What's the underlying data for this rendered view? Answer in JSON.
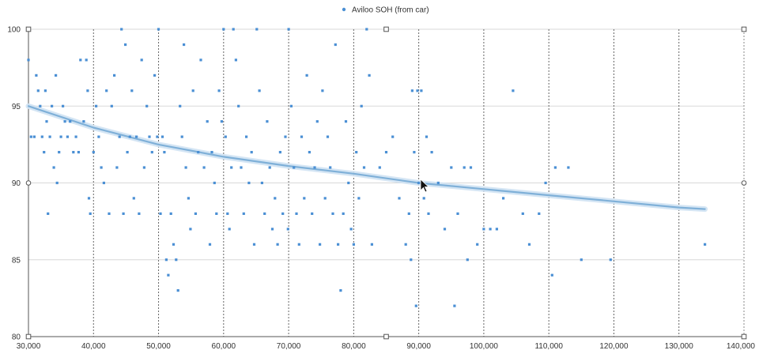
{
  "chart_data": {
    "type": "scatter",
    "title": "",
    "xlabel": "",
    "ylabel": "",
    "xlim": [
      30000,
      140000
    ],
    "ylim": [
      80,
      100
    ],
    "x_ticks": [
      30000,
      40000,
      50000,
      60000,
      70000,
      80000,
      90000,
      100000,
      110000,
      120000,
      130000,
      140000
    ],
    "x_tick_labels": [
      "30,000",
      "40,000",
      "50,000",
      "60,000",
      "70,000",
      "80,000",
      "90,000",
      "100,000",
      "110,000",
      "120,000",
      "130,000",
      "140,000"
    ],
    "y_ticks": [
      80,
      85,
      90,
      95,
      100
    ],
    "y_tick_labels": [
      "80",
      "85",
      "90",
      "95",
      "100"
    ],
    "grid": {
      "vertical": "dotted",
      "horizontal": "solid-light"
    },
    "legend": {
      "position": "top-center",
      "entries": [
        "Aviloo SOH (from car)"
      ]
    },
    "colors": {
      "points": "#4a8fd4",
      "trend": "#7fb0d8",
      "grid_v": "#666666",
      "grid_h": "#d8d8d8",
      "axis": "#555555"
    },
    "series": [
      {
        "name": "Aviloo SOH (from car)",
        "points": [
          [
            30000,
            98
          ],
          [
            30400,
            93
          ],
          [
            30900,
            93
          ],
          [
            31200,
            97
          ],
          [
            31500,
            96
          ],
          [
            31800,
            95
          ],
          [
            32100,
            93
          ],
          [
            32400,
            92
          ],
          [
            32600,
            96
          ],
          [
            32800,
            94
          ],
          [
            33000,
            88
          ],
          [
            33300,
            93
          ],
          [
            33600,
            95
          ],
          [
            33900,
            91
          ],
          [
            34200,
            97
          ],
          [
            34400,
            90
          ],
          [
            34700,
            92
          ],
          [
            35000,
            93
          ],
          [
            35300,
            95
          ],
          [
            35600,
            94
          ],
          [
            36000,
            93
          ],
          [
            36400,
            94
          ],
          [
            36900,
            92
          ],
          [
            37300,
            93
          ],
          [
            37700,
            92
          ],
          [
            38000,
            98
          ],
          [
            38500,
            94
          ],
          [
            38900,
            98
          ],
          [
            39100,
            96
          ],
          [
            39300,
            89
          ],
          [
            39500,
            88
          ],
          [
            40000,
            92
          ],
          [
            40400,
            95
          ],
          [
            40800,
            93
          ],
          [
            41200,
            91
          ],
          [
            41600,
            90
          ],
          [
            42000,
            96
          ],
          [
            42400,
            88
          ],
          [
            42800,
            95
          ],
          [
            43200,
            97
          ],
          [
            43600,
            91
          ],
          [
            44000,
            93
          ],
          [
            44300,
            100
          ],
          [
            44600,
            88
          ],
          [
            44900,
            99
          ],
          [
            45200,
            92
          ],
          [
            45600,
            93
          ],
          [
            45900,
            96
          ],
          [
            46200,
            89
          ],
          [
            46600,
            93
          ],
          [
            47000,
            88
          ],
          [
            47400,
            98
          ],
          [
            47800,
            91
          ],
          [
            48200,
            95
          ],
          [
            48600,
            93
          ],
          [
            49000,
            92
          ],
          [
            49400,
            97
          ],
          [
            49800,
            93
          ],
          [
            50000,
            100
          ],
          [
            50300,
            88
          ],
          [
            50600,
            93
          ],
          [
            50900,
            92
          ],
          [
            51200,
            85
          ],
          [
            51500,
            84
          ],
          [
            51900,
            88
          ],
          [
            52300,
            86
          ],
          [
            52700,
            85
          ],
          [
            53000,
            83
          ],
          [
            53300,
            95
          ],
          [
            53600,
            93
          ],
          [
            53900,
            99
          ],
          [
            54200,
            91
          ],
          [
            54600,
            89
          ],
          [
            54900,
            87
          ],
          [
            55300,
            96
          ],
          [
            55700,
            88
          ],
          [
            56100,
            92
          ],
          [
            56500,
            98
          ],
          [
            57000,
            91
          ],
          [
            57500,
            94
          ],
          [
            57900,
            86
          ],
          [
            58200,
            92
          ],
          [
            58600,
            90
          ],
          [
            58900,
            88
          ],
          [
            59300,
            96
          ],
          [
            59700,
            94
          ],
          [
            60000,
            100
          ],
          [
            60300,
            93
          ],
          [
            60600,
            88
          ],
          [
            60900,
            87
          ],
          [
            61200,
            91
          ],
          [
            61500,
            100
          ],
          [
            61900,
            98
          ],
          [
            62300,
            95
          ],
          [
            62700,
            91
          ],
          [
            63100,
            88
          ],
          [
            63500,
            93
          ],
          [
            63900,
            90
          ],
          [
            64300,
            92
          ],
          [
            64700,
            86
          ],
          [
            65100,
            100
          ],
          [
            65500,
            96
          ],
          [
            65900,
            90
          ],
          [
            66300,
            88
          ],
          [
            66700,
            94
          ],
          [
            67100,
            91
          ],
          [
            67500,
            87
          ],
          [
            67900,
            89
          ],
          [
            68300,
            86
          ],
          [
            68700,
            92
          ],
          [
            69100,
            88
          ],
          [
            69500,
            93
          ],
          [
            69900,
            87
          ],
          [
            70000,
            100
          ],
          [
            70400,
            95
          ],
          [
            70800,
            91
          ],
          [
            71200,
            88
          ],
          [
            71600,
            86
          ],
          [
            72000,
            93
          ],
          [
            72400,
            89
          ],
          [
            72800,
            97
          ],
          [
            73200,
            92
          ],
          [
            73600,
            88
          ],
          [
            74000,
            91
          ],
          [
            74400,
            94
          ],
          [
            74800,
            86
          ],
          [
            75200,
            96
          ],
          [
            75600,
            89
          ],
          [
            76000,
            93
          ],
          [
            76400,
            91
          ],
          [
            76800,
            88
          ],
          [
            77200,
            99
          ],
          [
            77600,
            86
          ],
          [
            78000,
            83
          ],
          [
            78400,
            88
          ],
          [
            78800,
            94
          ],
          [
            79200,
            90
          ],
          [
            79600,
            87
          ],
          [
            80000,
            86
          ],
          [
            80400,
            92
          ],
          [
            80800,
            89
          ],
          [
            81200,
            95
          ],
          [
            81600,
            91
          ],
          [
            82000,
            100
          ],
          [
            82400,
            97
          ],
          [
            82800,
            86
          ],
          [
            84000,
            91
          ],
          [
            85000,
            92
          ],
          [
            86000,
            93
          ],
          [
            87000,
            89
          ],
          [
            88000,
            86
          ],
          [
            88500,
            88
          ],
          [
            88800,
            85
          ],
          [
            89000,
            96
          ],
          [
            89300,
            92
          ],
          [
            89600,
            82
          ],
          [
            89800,
            96
          ],
          [
            90000,
            90
          ],
          [
            90400,
            96
          ],
          [
            90800,
            89
          ],
          [
            91200,
            93
          ],
          [
            91500,
            88
          ],
          [
            92000,
            92
          ],
          [
            93000,
            90
          ],
          [
            94000,
            87
          ],
          [
            95000,
            91
          ],
          [
            95500,
            82
          ],
          [
            96000,
            88
          ],
          [
            97000,
            91
          ],
          [
            97500,
            85
          ],
          [
            98000,
            91
          ],
          [
            99000,
            86
          ],
          [
            100000,
            87
          ],
          [
            101000,
            87
          ],
          [
            102000,
            87
          ],
          [
            103000,
            89
          ],
          [
            104500,
            96
          ],
          [
            106000,
            88
          ],
          [
            107000,
            86
          ],
          [
            108500,
            88
          ],
          [
            109500,
            90
          ],
          [
            110500,
            84
          ],
          [
            111000,
            91
          ],
          [
            113000,
            91
          ],
          [
            115000,
            85
          ],
          [
            119500,
            85
          ],
          [
            134000,
            86
          ]
        ]
      }
    ],
    "trendline": {
      "type": "logarithmic",
      "x": [
        30000,
        40000,
        50000,
        60000,
        70000,
        80000,
        90000,
        100000,
        110000,
        120000,
        130000,
        134000
      ],
      "y": [
        95.0,
        93.6,
        92.5,
        91.7,
        91.1,
        90.6,
        90.0,
        89.6,
        89.2,
        88.8,
        88.4,
        88.3
      ]
    }
  }
}
